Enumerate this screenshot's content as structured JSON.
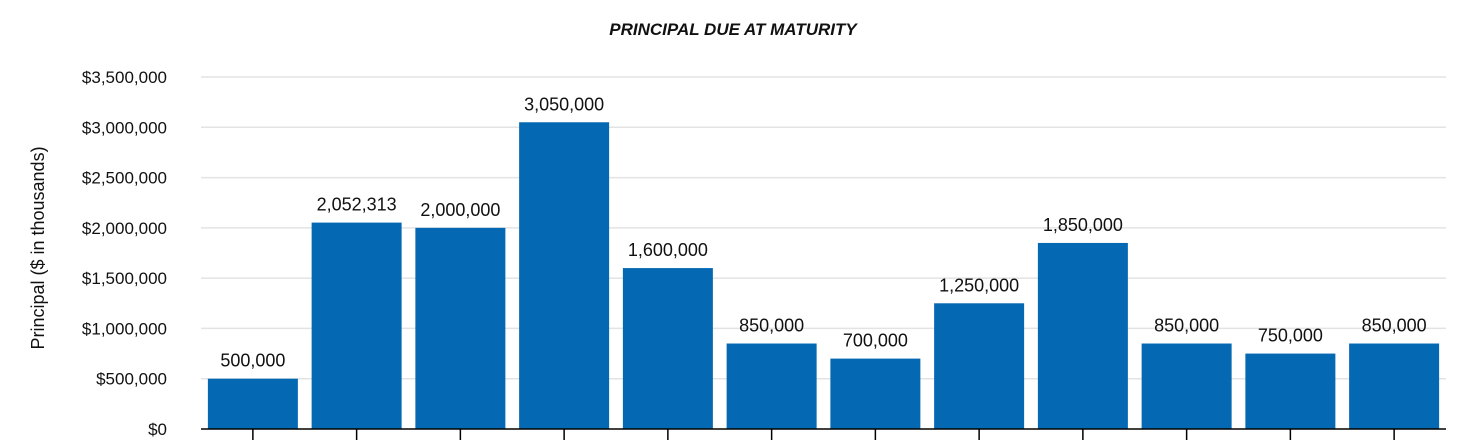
{
  "chart_data": {
    "type": "bar",
    "title": "PRINCIPAL DUE AT MATURITY",
    "xlabel": "",
    "ylabel": "Principal ($ in thousands)",
    "categories": [
      "",
      "",
      "",
      "",
      "",
      "",
      "",
      "",
      "",
      "",
      "",
      ""
    ],
    "values": [
      500000,
      2052313,
      2000000,
      3050000,
      1600000,
      850000,
      700000,
      1250000,
      1850000,
      850000,
      750000,
      850000
    ],
    "data_labels": [
      "500,000",
      "2,052,313",
      "2,000,000",
      "3,050,000",
      "1,600,000",
      "850,000",
      "700,000",
      "1,250,000",
      "1,850,000",
      "850,000",
      "750,000",
      "850,000"
    ],
    "ylim": [
      0,
      3500000
    ],
    "yticks": [
      0,
      500000,
      1000000,
      1500000,
      2000000,
      2500000,
      3000000,
      3500000
    ],
    "ytick_labels": [
      "$0",
      "$500,000",
      "$1,000,000",
      "$1,500,000",
      "$2,000,000",
      "$2,500,000",
      "$3,000,000",
      "$3,500,000"
    ],
    "grid": true,
    "legend": "none",
    "colors": {
      "bar": "#0568b3",
      "grid": "#e3e3e3",
      "axis": "#000000"
    }
  }
}
